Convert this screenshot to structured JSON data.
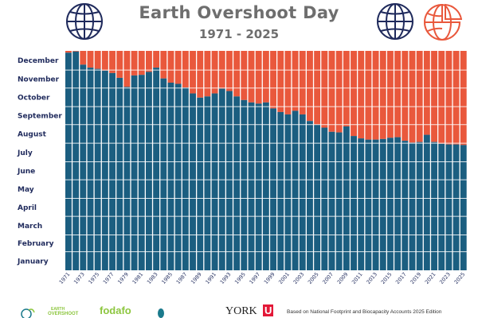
{
  "header": {
    "title": "Earth Overshoot Day",
    "subtitle": "1971 - 2025"
  },
  "footer": {
    "source_note": "Based on National Footprint and Biocapacity Accounts 2025 Edition",
    "logo_eod_top": "EARTH",
    "logo_eod_bottom": "OVERSHOOT",
    "logo_fodafo": "fodafo",
    "logo_york": "YORK",
    "logo_york_mark": "U"
  },
  "colors": {
    "overshoot": "#e9583c",
    "budget": "#1b5e80",
    "globe": "#1f2a5c",
    "title": "#6e6e6e",
    "logo_green": "#8dc63f",
    "logo_teal": "#1b7a8c"
  },
  "chart_data": {
    "type": "bar",
    "y_axis_labels": [
      "January",
      "February",
      "March",
      "April",
      "May",
      "June",
      "July",
      "August",
      "September",
      "October",
      "November",
      "December"
    ],
    "x_tick_labels": [
      "1971",
      "1973",
      "1975",
      "1977",
      "1979",
      "1981",
      "1983",
      "1985",
      "1987",
      "1989",
      "1991",
      "1993",
      "1995",
      "1997",
      "1999",
      "2001",
      "2003",
      "2005",
      "2007",
      "2009",
      "2011",
      "2013",
      "2015",
      "2017",
      "2019",
      "2021",
      "2023",
      "2025"
    ],
    "series": [
      {
        "name": "",
        "x": [
          1971,
          1972,
          1973,
          1974,
          1975,
          1976,
          1977,
          1978,
          1979,
          1980,
          1981,
          1982,
          1983,
          1984,
          1985,
          1986,
          1987,
          1988,
          1989,
          1990,
          1991,
          1992,
          1993,
          1994,
          1995,
          1996,
          1997,
          1998,
          1999,
          2000,
          2001,
          2002,
          2003,
          2004,
          2005,
          2006,
          2007,
          2008,
          2009,
          2010,
          2011,
          2012,
          2013,
          2014,
          2015,
          2016,
          2017,
          2018,
          2019,
          2020,
          2021,
          2022,
          2023,
          2024,
          2025
        ],
        "values": [
          363,
          365,
          343,
          338,
          336,
          333,
          329,
          321,
          306,
          325,
          326,
          331,
          338,
          320,
          313,
          311,
          305,
          295,
          288,
          290,
          295,
          303,
          299,
          290,
          284,
          280,
          278,
          280,
          270,
          264,
          260,
          266,
          260,
          249,
          243,
          238,
          231,
          230,
          240,
          224,
          220,
          218,
          218,
          219,
          221,
          222,
          216,
          213,
          214,
          226,
          214,
          211,
          210,
          210,
          209
        ]
      }
    ],
    "ylim": [
      0,
      366
    ],
    "grid": false
  }
}
